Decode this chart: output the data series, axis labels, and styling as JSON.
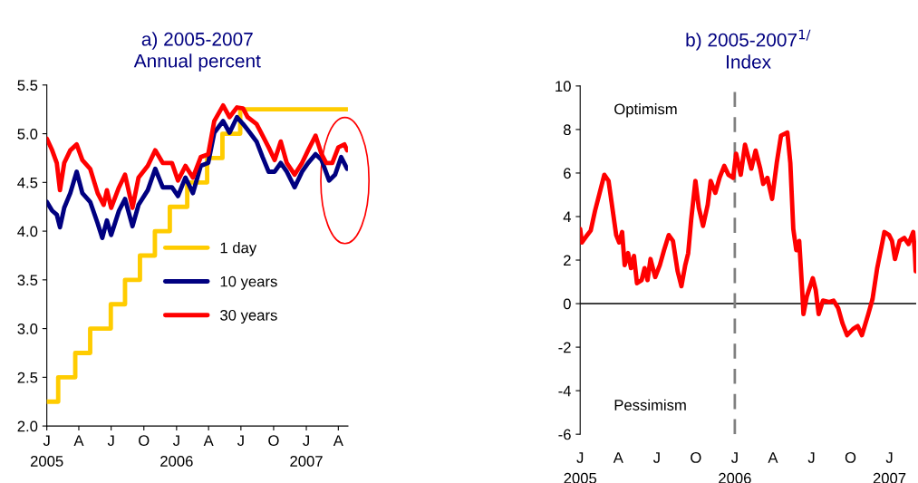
{
  "chart_data": [
    {
      "type": "line",
      "title": "a) 2005-2007\nAnnual percent",
      "legend": "center",
      "xlim": [
        "2005-01-01",
        "2007-04-28"
      ],
      "xticks": [
        {
          "value": "2005-01-01",
          "label": "J\n2005"
        },
        {
          "value": "2005-04-01",
          "label": "A"
        },
        {
          "value": "2005-07-01",
          "label": "J"
        },
        {
          "value": "2005-10-01",
          "label": "O"
        },
        {
          "value": "2006-01-01",
          "label": "J\n2006"
        },
        {
          "value": "2006-04-01",
          "label": "A"
        },
        {
          "value": "2006-07-01",
          "label": "J"
        },
        {
          "value": "2006-10-01",
          "label": "O"
        },
        {
          "value": "2007-01-01",
          "label": "J\n2007"
        },
        {
          "value": "2007-04-01",
          "label": "A"
        }
      ],
      "ylim": [
        2.0,
        5.5
      ],
      "yticks": [
        {
          "value": 2.0,
          "label": "2.0"
        },
        {
          "value": 2.5,
          "label": "2.5"
        },
        {
          "value": 3.0,
          "label": "3.0"
        },
        {
          "value": 3.5,
          "label": "3.5"
        },
        {
          "value": 4.0,
          "label": "4.0"
        },
        {
          "value": 4.5,
          "label": "4.5"
        },
        {
          "value": 5.0,
          "label": "5.0"
        },
        {
          "value": 5.5,
          "label": "5.5"
        }
      ],
      "series": [
        {
          "name": "1 day",
          "type": "step",
          "color": "#ffcc00",
          "x": [
            "2005-01-01",
            "2005-02-02",
            "2005-03-22",
            "2005-05-03",
            "2005-06-30",
            "2005-08-09",
            "2005-09-20",
            "2005-11-01",
            "2005-12-13",
            "2006-01-31",
            "2006-03-28",
            "2006-05-10",
            "2006-06-29",
            "2007-04-26"
          ],
          "values": [
            2.25,
            2.5,
            2.75,
            3.0,
            3.25,
            3.5,
            3.75,
            4.0,
            4.25,
            4.5,
            4.75,
            5.0,
            5.25,
            5.25
          ]
        },
        {
          "name": "10 years",
          "color": "#000080",
          "x": [
            "2005-01-01",
            "2005-01-16",
            "2005-01-29",
            "2005-02-07",
            "2005-02-19",
            "2005-03-08",
            "2005-03-26",
            "2005-04-11",
            "2005-05-03",
            "2005-05-24",
            "2005-06-06",
            "2005-06-19",
            "2005-07-01",
            "2005-07-23",
            "2005-08-09",
            "2005-08-30",
            "2005-09-16",
            "2005-10-12",
            "2005-11-02",
            "2005-11-23",
            "2005-12-19",
            "2006-01-05",
            "2006-01-26",
            "2006-02-16",
            "2006-03-10",
            "2006-03-31",
            "2006-04-17",
            "2006-05-12",
            "2006-05-30",
            "2006-06-20",
            "2006-07-07",
            "2006-07-20",
            "2006-08-14",
            "2006-08-31",
            "2006-09-17",
            "2006-10-04",
            "2006-10-21",
            "2006-11-07",
            "2006-11-29",
            "2006-12-20",
            "2007-01-06",
            "2007-01-27",
            "2007-02-13",
            "2007-03-06",
            "2007-03-23",
            "2007-04-09",
            "2007-04-26"
          ],
          "values": [
            4.3,
            4.21,
            4.17,
            4.04,
            4.24,
            4.39,
            4.61,
            4.39,
            4.3,
            4.08,
            3.93,
            4.11,
            3.96,
            4.21,
            4.33,
            4.05,
            4.27,
            4.42,
            4.64,
            4.45,
            4.45,
            4.36,
            4.55,
            4.39,
            4.67,
            4.7,
            5.01,
            5.13,
            5.01,
            5.17,
            5.1,
            5.04,
            4.92,
            4.76,
            4.61,
            4.61,
            4.7,
            4.61,
            4.45,
            4.61,
            4.7,
            4.79,
            4.73,
            4.52,
            4.58,
            4.76,
            4.64
          ]
        },
        {
          "name": "30 years",
          "color": "#ff0000",
          "x": [
            "2005-01-01",
            "2005-01-16",
            "2005-01-29",
            "2005-02-07",
            "2005-02-19",
            "2005-03-08",
            "2005-03-26",
            "2005-04-11",
            "2005-05-03",
            "2005-05-24",
            "2005-06-10",
            "2005-06-19",
            "2005-07-01",
            "2005-07-23",
            "2005-08-09",
            "2005-08-30",
            "2005-09-16",
            "2005-10-12",
            "2005-11-02",
            "2005-11-23",
            "2005-12-19",
            "2006-01-05",
            "2006-01-26",
            "2006-02-16",
            "2006-03-10",
            "2006-03-31",
            "2006-04-17",
            "2006-05-12",
            "2006-05-30",
            "2006-06-20",
            "2006-07-07",
            "2006-07-20",
            "2006-08-14",
            "2006-08-31",
            "2006-09-17",
            "2006-10-04",
            "2006-10-21",
            "2006-11-07",
            "2006-11-29",
            "2006-12-20",
            "2007-01-06",
            "2007-01-27",
            "2007-02-13",
            "2007-02-26",
            "2007-03-15",
            "2007-04-01",
            "2007-04-18",
            "2007-04-26"
          ],
          "values": [
            4.95,
            4.83,
            4.7,
            4.42,
            4.7,
            4.83,
            4.89,
            4.73,
            4.64,
            4.39,
            4.27,
            4.42,
            4.24,
            4.45,
            4.58,
            4.24,
            4.55,
            4.67,
            4.83,
            4.7,
            4.7,
            4.52,
            4.67,
            4.55,
            4.76,
            4.79,
            5.13,
            5.29,
            5.17,
            5.27,
            5.26,
            5.17,
            5.1,
            4.98,
            4.86,
            4.73,
            4.92,
            4.7,
            4.58,
            4.7,
            4.83,
            4.98,
            4.79,
            4.7,
            4.7,
            4.86,
            4.89,
            4.83
          ]
        }
      ]
    },
    {
      "type": "line",
      "title": "b) 2005-2007$^{1/}$\nIndex",
      "xlim": [
        "2005-01-01",
        "2007-03-05"
      ],
      "xticks": [
        {
          "value": "2005-01-01",
          "label": "J\n2005"
        },
        {
          "value": "2005-04-01",
          "label": "A"
        },
        {
          "value": "2005-07-01",
          "label": "J"
        },
        {
          "value": "2005-10-01",
          "label": "O"
        },
        {
          "value": "2006-01-01",
          "label": "J\n2006"
        },
        {
          "value": "2006-04-01",
          "label": "A"
        },
        {
          "value": "2006-07-01",
          "label": "J"
        },
        {
          "value": "2006-10-01",
          "label": "O"
        },
        {
          "value": "2007-01-01",
          "label": "J\n2007"
        }
      ],
      "ylim": [
        -6,
        10
      ],
      "yticks": [
        -6,
        -4,
        -2,
        0,
        2,
        4,
        6,
        8,
        10
      ],
      "annotations": [
        "Optimism",
        "Pessimism"
      ],
      "ref_lines": [
        {
          "axis": "y",
          "value": 0,
          "color": "#000000"
        },
        {
          "axis": "x",
          "value": "2006-01-01",
          "color": "#808080",
          "line_style": "dashed"
        }
      ],
      "series": [
        {
          "color": "#ff0000",
          "x": [
            "2005-01-01",
            "2005-01-05",
            "2005-01-15",
            "2005-01-26",
            "2005-02-05",
            "2005-02-16",
            "2005-02-27",
            "2005-03-09",
            "2005-03-16",
            "2005-03-27",
            "2005-04-03",
            "2005-04-10",
            "2005-04-16",
            "2005-04-24",
            "2005-05-01",
            "2005-05-08",
            "2005-05-15",
            "2005-05-26",
            "2005-06-02",
            "2005-06-09",
            "2005-06-16",
            "2005-06-27",
            "2005-07-08",
            "2005-07-18",
            "2005-07-29",
            "2005-08-08",
            "2005-08-19",
            "2005-08-28",
            "2005-09-06",
            "2005-09-13",
            "2005-09-20",
            "2005-09-30",
            "2005-10-08",
            "2005-10-18",
            "2005-10-29",
            "2005-11-05",
            "2005-11-16",
            "2005-11-26",
            "2005-12-07",
            "2005-12-17",
            "2005-12-28",
            "2006-01-04",
            "2006-01-15",
            "2006-01-25",
            "2006-02-09",
            "2006-02-19",
            "2006-03-02",
            "2006-03-09",
            "2006-03-19",
            "2006-03-30",
            "2006-04-10",
            "2006-04-20",
            "2006-05-05",
            "2006-05-12",
            "2006-05-19",
            "2006-05-26",
            "2006-06-02",
            "2006-06-09",
            "2006-06-12",
            "2006-06-20",
            "2006-07-04",
            "2006-07-11",
            "2006-07-18",
            "2006-07-28",
            "2006-08-12",
            "2006-08-22",
            "2006-09-02",
            "2006-09-12",
            "2006-09-23",
            "2006-10-07",
            "2006-10-18",
            "2006-10-28",
            "2006-11-12",
            "2006-11-22",
            "2006-12-03",
            "2006-12-13",
            "2006-12-20",
            "2006-12-31",
            "2007-01-07",
            "2007-01-14",
            "2007-01-25",
            "2007-02-05",
            "2007-02-15",
            "2007-02-26",
            "2007-03-02",
            "2007-03-04"
          ],
          "values": [
            3.43,
            2.81,
            3.08,
            3.36,
            4.26,
            5.09,
            5.92,
            5.64,
            4.67,
            3.15,
            2.81,
            3.29,
            1.77,
            2.32,
            1.63,
            2.19,
            0.94,
            1.08,
            1.63,
            1.08,
            2.05,
            1.22,
            1.77,
            2.46,
            3.15,
            2.88,
            1.49,
            0.8,
            1.77,
            2.32,
            3.85,
            5.64,
            4.4,
            3.57,
            4.54,
            5.64,
            5.09,
            5.78,
            6.33,
            5.92,
            5.78,
            6.89,
            5.92,
            7.3,
            6.2,
            7.03,
            6.2,
            5.5,
            5.78,
            4.81,
            6.47,
            7.72,
            7.86,
            6.47,
            3.43,
            2.46,
            2.88,
            0.62,
            -0.48,
            0.34,
            1.17,
            0.62,
            -0.48,
            0.14,
            0.07,
            0.14,
            -0.21,
            -0.9,
            -1.45,
            -1.17,
            -1.03,
            -1.45,
            -0.48,
            0.21,
            1.63,
            2.6,
            3.29,
            3.15,
            2.88,
            2.05,
            2.88,
            3.02,
            2.74,
            3.29,
            2.32,
            1.49
          ]
        }
      ]
    }
  ]
}
